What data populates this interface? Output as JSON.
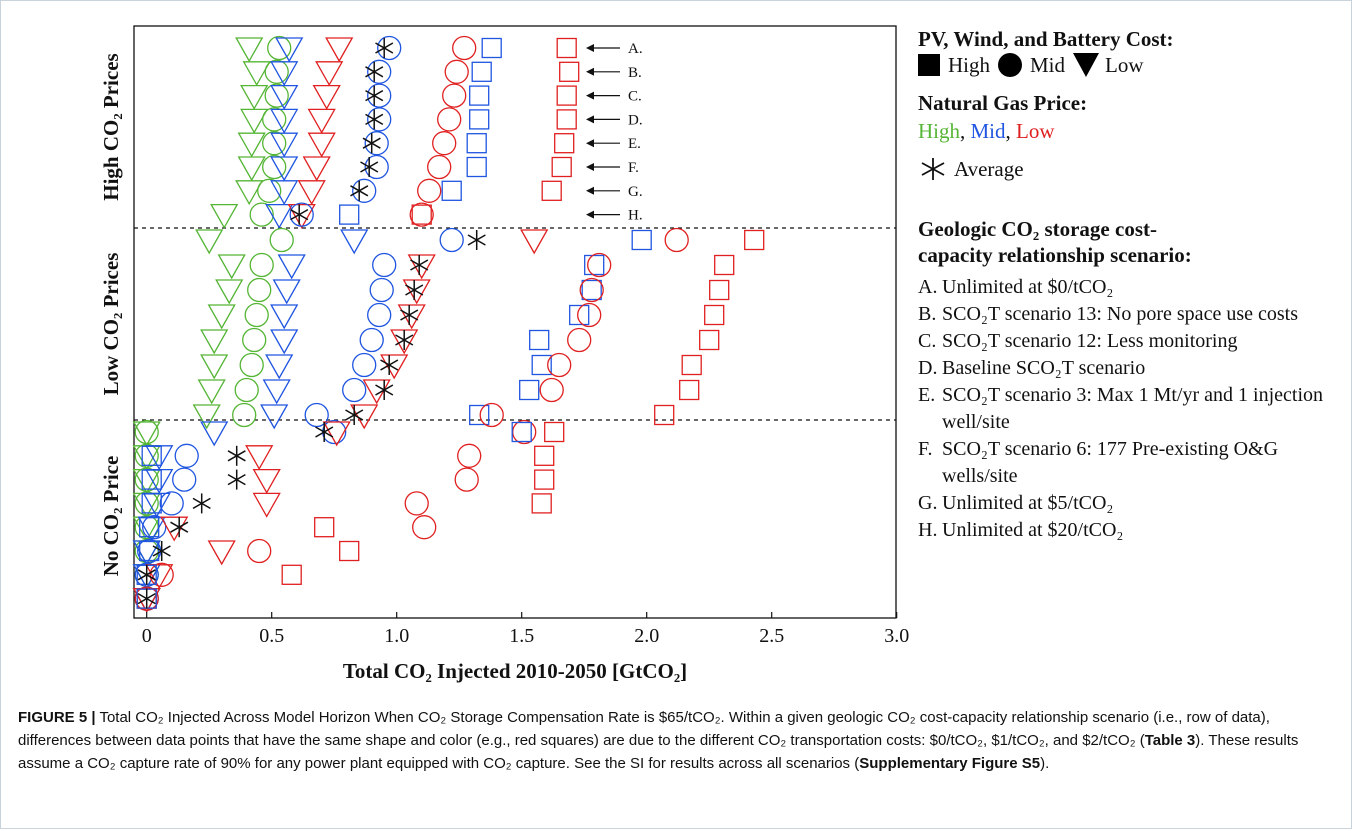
{
  "chart_data": {
    "type": "scatter",
    "xlabel": "Total CO₂ Injected 2010-2050 [GtCO₂]",
    "xlim": [
      -0.05,
      3.0
    ],
    "xticks": [
      "0",
      "0.5",
      "1.0",
      "1.5",
      "2.0",
      "2.5",
      "3.0"
    ],
    "bands": [
      {
        "label": "High CO₂ Prices"
      },
      {
        "label": "Low CO₂ Prices"
      },
      {
        "label": "No CO₂ Price"
      }
    ],
    "rows": [
      "A.",
      "B.",
      "C.",
      "D.",
      "E.",
      "F.",
      "G.",
      "H."
    ],
    "row_labels_band": "High CO₂ Prices",
    "colors": {
      "high_gas": "#55b535",
      "mid_gas": "#1f55e0",
      "low_gas": "#e02020",
      "average": "#111111"
    },
    "series": [
      {
        "band": "high",
        "gas": "high",
        "cost": "low",
        "x": [
          0.41,
          0.44,
          0.43,
          0.43,
          0.42,
          0.42,
          0.41,
          0.31
        ]
      },
      {
        "band": "high",
        "gas": "high",
        "cost": "mid",
        "x": [
          0.53,
          0.52,
          0.52,
          0.51,
          0.51,
          0.51,
          0.49,
          0.46
        ]
      },
      {
        "band": "high",
        "gas": "mid",
        "cost": "low",
        "x": [
          0.57,
          0.55,
          0.55,
          0.55,
          0.55,
          0.55,
          0.55,
          0.53
        ]
      },
      {
        "band": "high",
        "gas": "low",
        "cost": "low",
        "x": [
          0.77,
          0.73,
          0.72,
          0.7,
          0.7,
          0.68,
          0.66,
          0.62
        ]
      },
      {
        "band": "high",
        "gas": "mid",
        "cost": "mid",
        "x": [
          0.97,
          0.93,
          0.93,
          0.93,
          0.92,
          0.92,
          0.87,
          0.62
        ]
      },
      {
        "band": "high",
        "gas": "mid",
        "cost": "high",
        "x": [
          1.38,
          1.34,
          1.33,
          1.33,
          1.32,
          1.32,
          1.22,
          0.81
        ]
      },
      {
        "band": "high",
        "gas": "low",
        "cost": "mid",
        "x": [
          1.27,
          1.24,
          1.23,
          1.21,
          1.19,
          1.17,
          1.13,
          1.1
        ]
      },
      {
        "band": "high",
        "gas": "low",
        "cost": "high",
        "x": [
          1.68,
          1.69,
          1.68,
          1.68,
          1.67,
          1.66,
          1.62,
          1.1
        ]
      },
      {
        "band": "high",
        "gas": "avg",
        "cost": "",
        "x": [
          0.95,
          0.91,
          0.91,
          0.91,
          0.9,
          0.89,
          0.85,
          0.61
        ]
      },
      {
        "band": "low",
        "gas": "high",
        "cost": "low",
        "x": [
          0.25,
          0.34,
          0.33,
          0.3,
          0.27,
          0.27,
          0.26,
          0.24
        ]
      },
      {
        "band": "low",
        "gas": "high",
        "cost": "mid",
        "x": [
          0.54,
          0.46,
          0.45,
          0.44,
          0.43,
          0.42,
          0.4,
          0.39
        ]
      },
      {
        "band": "low",
        "gas": "mid",
        "cost": "low",
        "x": [
          0.83,
          0.58,
          0.56,
          0.55,
          0.55,
          0.53,
          0.52,
          0.51
        ]
      },
      {
        "band": "low",
        "gas": "mid",
        "cost": "mid",
        "x": [
          1.22,
          0.95,
          0.94,
          0.93,
          0.9,
          0.87,
          0.83,
          0.68
        ]
      },
      {
        "band": "low",
        "gas": "low",
        "cost": "low",
        "x": [
          1.55,
          1.1,
          1.08,
          1.06,
          1.03,
          0.99,
          0.92,
          0.87
        ]
      },
      {
        "band": "low",
        "gas": "mid",
        "cost": "high",
        "x": [
          1.98,
          1.79,
          1.78,
          1.73,
          1.57,
          1.58,
          1.53,
          1.33
        ]
      },
      {
        "band": "low",
        "gas": "low",
        "cost": "mid",
        "x": [
          2.12,
          1.81,
          1.78,
          1.77,
          1.73,
          1.65,
          1.62,
          1.38
        ]
      },
      {
        "band": "low",
        "gas": "low",
        "cost": "high",
        "x": [
          2.43,
          2.31,
          2.29,
          2.27,
          2.25,
          2.18,
          2.17,
          2.07
        ]
      },
      {
        "band": "low",
        "gas": "avg",
        "cost": "",
        "x": [
          1.32,
          1.09,
          1.07,
          1.05,
          1.03,
          0.97,
          0.95,
          0.83
        ]
      },
      {
        "band": "none",
        "gas": "high",
        "cost": "low",
        "x": [
          0.0,
          0.0,
          0.0,
          0.0,
          0.0,
          0.0,
          0.0,
          0.0
        ]
      },
      {
        "band": "none",
        "gas": "high",
        "cost": "mid",
        "x": [
          0.0,
          0.0,
          0.0,
          0.0,
          0.0,
          0.0,
          0.0,
          0.0
        ]
      },
      {
        "band": "none",
        "gas": "mid",
        "cost": "mid",
        "x": [
          0.75,
          0.16,
          0.15,
          0.1,
          0.03,
          0.01,
          0.0,
          0.0
        ]
      },
      {
        "band": "none",
        "gas": "mid",
        "cost": "low",
        "x": [
          0.27,
          0.05,
          0.05,
          0.04,
          0.02,
          0.0,
          0.0,
          0.0
        ]
      },
      {
        "band": "none",
        "gas": "low",
        "cost": "low",
        "x": [
          0.76,
          0.45,
          0.48,
          0.48,
          0.11,
          0.3,
          0.05,
          0.0
        ]
      },
      {
        "band": "none",
        "gas": "low",
        "cost": "mid",
        "x": [
          1.51,
          1.29,
          1.28,
          1.08,
          1.11,
          0.45,
          0.06,
          0.0
        ]
      },
      {
        "band": "none",
        "gas": "low",
        "cost": "high",
        "x": [
          1.63,
          1.59,
          1.59,
          1.58,
          0.71,
          0.81,
          0.58,
          0.0
        ]
      },
      {
        "band": "none",
        "gas": "mid",
        "cost": "high",
        "x": [
          1.5,
          0.02,
          0.02,
          0.02,
          0.01,
          0.01,
          0.0,
          0.0
        ]
      },
      {
        "band": "none",
        "gas": "avg",
        "cost": "",
        "x": [
          0.71,
          0.36,
          0.36,
          0.22,
          0.13,
          0.06,
          0.0,
          0.0
        ]
      }
    ]
  },
  "legend": {
    "cost_title": "PV, Wind, and Battery Cost:",
    "cost_high": "High",
    "cost_mid": "Mid",
    "cost_low": "Low",
    "gas_title": "Natural Gas Price:",
    "gas_high": "High",
    "gas_sep1": ", ",
    "gas_mid": "Mid",
    "gas_sep2": ", ",
    "gas_low": "Low",
    "average": "Average",
    "geo_title_1": "Geologic CO₂ storage cost-",
    "geo_title_2": "capacity relationship scenario:",
    "geo_items": [
      {
        "letter": "A.",
        "text": "Unlimited at $0/tCO₂"
      },
      {
        "letter": "B.",
        "text": "SCO₂T scenario 13: No pore space use costs"
      },
      {
        "letter": "C.",
        "text": "SCO₂T scenario 12: Less monitoring"
      },
      {
        "letter": "D.",
        "text": "Baseline SCO₂T scenario"
      },
      {
        "letter": "E.",
        "text": "SCO₂T scenario 3: Max 1 Mt/yr and 1 injection well/site"
      },
      {
        "letter": "F.",
        "text": "SCO₂T scenario 6: 177 Pre-existing O&G wells/site"
      },
      {
        "letter": "G.",
        "text": "Unlimited at $5/tCO₂"
      },
      {
        "letter": "H.",
        "text": "Unlimited at $20/tCO₂"
      }
    ]
  },
  "caption": {
    "label": "FIGURE 5 |",
    "part1": " Total CO₂ Injected Across Model Horizon When CO₂ Storage Compensation Rate is $65/tCO₂. Within a given geologic CO₂ cost-capacity relationship scenario (i.e., row of data), differences between data points that have the same shape and color (e.g., red squares) are due to the different CO₂ transportation costs: $0/tCO₂, $1/tCO₂, and $2/tCO₂ (",
    "ref1": "Table 3",
    "part2": "). These results assume a CO₂ capture rate of 90% for any power plant equipped with CO₂ capture. See the SI for results across all scenarios (",
    "ref2": "Supplementary Figure S5",
    "part3": ")."
  }
}
